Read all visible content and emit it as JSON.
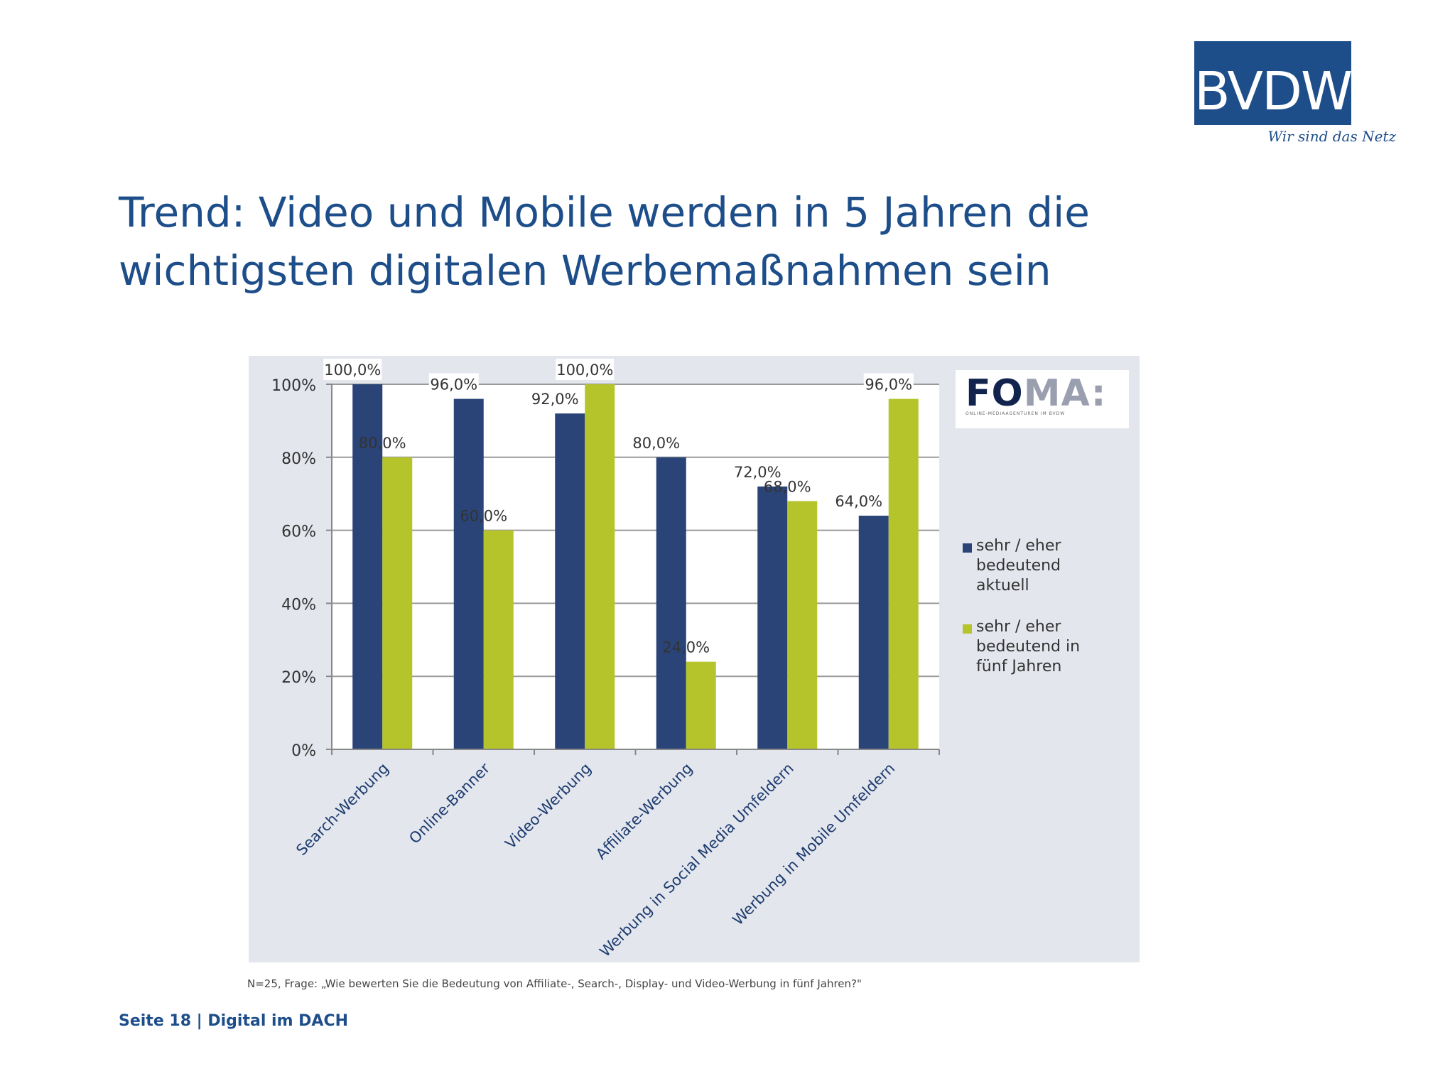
{
  "header": {
    "logo_text": "BVDW",
    "logo_tagline": "Wir sind das Netz",
    "title_line1": "Trend: Video und Mobile werden in 5 Jahren die",
    "title_line2": "wichtigsten digitalen Werbemaßnahmen sein"
  },
  "foma_logo": {
    "text_dark": "FO",
    "text_light": "MA:",
    "subtitle": "ONLINE-MEDIAAGENTUREN IM BVDW"
  },
  "colors": {
    "brand": "#1d4e8a",
    "series1": "#2a4478",
    "series2": "#b4c42a",
    "panel": "#e4e6ee"
  },
  "chart_data": {
    "type": "bar",
    "categories": [
      "Search-Werbung",
      "Online-Banner",
      "Video-Werbung",
      "Affiliate-Werbung",
      "Werbung in Social Media Umfeldern",
      "Werbung in Mobile Umfeldern"
    ],
    "series": [
      {
        "name": "sehr / eher bedeutend aktuell",
        "values": [
          100,
          96,
          92,
          80,
          72,
          64
        ],
        "labels": [
          "100,0%",
          "96,0%",
          "92,0%",
          "80,0%",
          "72,0%",
          "64,0%"
        ]
      },
      {
        "name": "sehr / eher bedeutend in fünf Jahren",
        "values": [
          80,
          60,
          100,
          24,
          68,
          96
        ],
        "labels": [
          "80,0%",
          "60,0%",
          "100,0%",
          "24,0%",
          "68,0%",
          "96,0%"
        ]
      }
    ],
    "y_ticks": [
      "0%",
      "20%",
      "40%",
      "60%",
      "80%",
      "100%"
    ],
    "ylim": [
      0,
      100
    ],
    "grid": true,
    "legend_position": "right"
  },
  "legend": {
    "items": [
      {
        "lines": [
          "sehr / eher",
          "bedeutend",
          "aktuell"
        ]
      },
      {
        "lines": [
          "sehr / eher",
          "bedeutend in",
          "fünf Jahren"
        ]
      }
    ]
  },
  "footnote": "N=25, Frage: „Wie bewerten Sie die Bedeutung von Affiliate-, Search-, Display- und Video-Werbung in fünf Jahren?\"",
  "footer": "Seite 18 | Digital im DACH"
}
